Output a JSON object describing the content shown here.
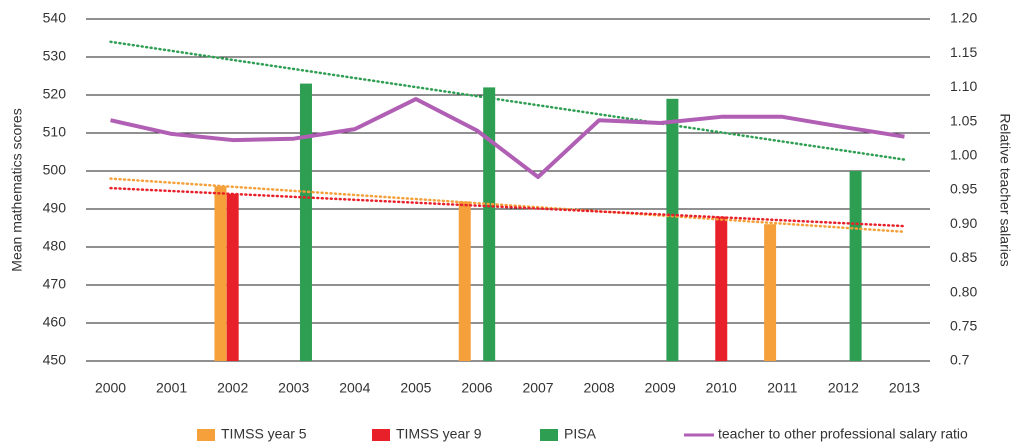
{
  "chart_data": {
    "type": "bar",
    "ylabel": "Mean mathematics scores",
    "y2label": "Relative teacher salaries",
    "categories": [
      "2000",
      "2001",
      "2002",
      "2003",
      "2004",
      "2005",
      "2006",
      "2007",
      "2008",
      "2009",
      "2010",
      "2011",
      "2012",
      "2013"
    ],
    "ylim": [
      450,
      540
    ],
    "yticks": [
      450,
      460,
      470,
      480,
      490,
      500,
      510,
      520,
      530,
      540
    ],
    "y2lim": [
      0.7,
      1.2
    ],
    "y2ticks": [
      0.7,
      0.75,
      {
        "value": 0.8,
        "label": "0.80"
      },
      0.85,
      {
        "value": 0.9,
        "label": "0.90"
      },
      0.95,
      {
        "value": 1.0,
        "label": "1.00"
      },
      1.05,
      {
        "value": 1.1,
        "label": "1.10"
      },
      1.15,
      {
        "value": 1.2,
        "label": "1.20"
      }
    ],
    "grid": true,
    "legend": "bottom",
    "series": [
      {
        "name": "TIMSS year 5",
        "type": "bar",
        "color": "#f5a03a",
        "values": [
          null,
          null,
          496,
          null,
          null,
          null,
          492,
          null,
          null,
          null,
          null,
          486,
          null,
          null
        ],
        "trend": [
          498,
          484
        ]
      },
      {
        "name": "TIMSS year 9",
        "type": "bar",
        "color": "#e8202a",
        "values": [
          null,
          null,
          494,
          null,
          null,
          null,
          null,
          null,
          null,
          null,
          488,
          null,
          null,
          null
        ],
        "trend": [
          495.5,
          485.5
        ]
      },
      {
        "name": "PISA",
        "type": "bar",
        "color": "#2e9e52",
        "values": [
          null,
          null,
          null,
          523,
          null,
          null,
          522,
          null,
          null,
          519,
          null,
          null,
          500,
          null
        ],
        "trend": [
          534,
          503
        ]
      },
      {
        "name": "teacher to other professional salary ratio",
        "type": "line",
        "axis": "y2",
        "color": "#b05fb4",
        "values": [
          1.052,
          1.032,
          1.023,
          1.025,
          1.039,
          1.083,
          1.037,
          0.969,
          1.052,
          1.048,
          1.057,
          1.057,
          1.042,
          1.028
        ]
      }
    ]
  }
}
